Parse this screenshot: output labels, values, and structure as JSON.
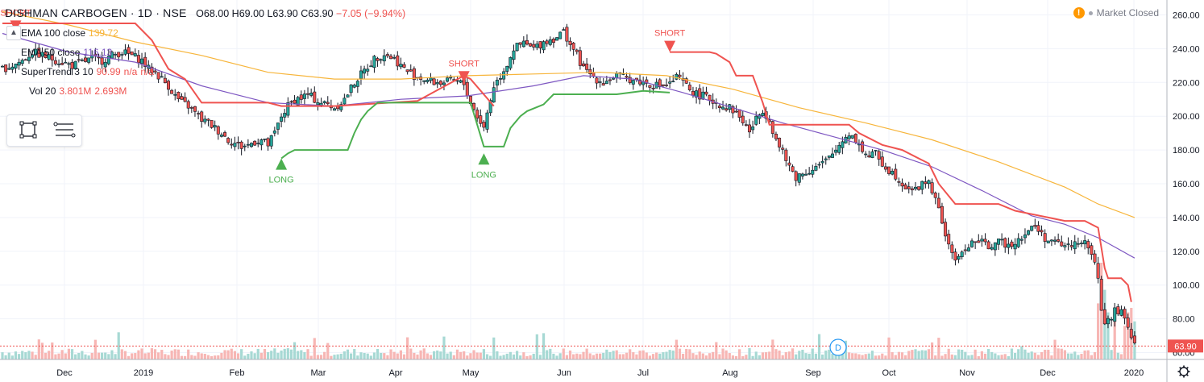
{
  "header": {
    "symbol": "DISHMAN CARBOGEN · 1D · NSE",
    "open": "O68.00",
    "high": "H69.00",
    "low": "L63.90",
    "close": "C63.90",
    "change": "−7.05 (−9.94%)"
  },
  "status": {
    "icon": "warning-icon",
    "text": "Market Closed"
  },
  "legend": [
    {
      "name": "EMA 100 close",
      "value": "139.72",
      "color": "#f7b53b"
    },
    {
      "name": "EMA 50 close",
      "value": "116.13",
      "color": "#7e57c2"
    },
    {
      "name": "SuperTrend 3 10",
      "value": "90.99",
      "extra1": "n/a",
      "extra2": "n/a",
      "color": "#ef5350"
    },
    {
      "name": "Vol 20",
      "value": "3.801M",
      "extra1": "2.693M",
      "color": "#ef5350"
    }
  ],
  "price_label": "63.90",
  "dividend_marker": "D",
  "signals": [
    {
      "label": "SHORT",
      "type": "short"
    },
    {
      "label": "LONG",
      "type": "long"
    },
    {
      "label": "SHORT",
      "type": "short"
    },
    {
      "label": "LONG",
      "type": "long"
    },
    {
      "label": "SHORT",
      "type": "short"
    }
  ],
  "colors": {
    "up": "#26a69a",
    "down": "#ef5350",
    "ema100": "#f7b53b",
    "ema50": "#7e57c2",
    "st_short": "#ef5350",
    "st_long": "#4caf50",
    "grid": "#f0f3fa"
  },
  "chart_data": {
    "type": "candlestick",
    "x_ticks": [
      "Dec",
      "2019",
      "Feb",
      "Mar",
      "Apr",
      "May",
      "Jun",
      "Jul",
      "Aug",
      "Sep",
      "Oct",
      "Nov",
      "Dec",
      "2020"
    ],
    "y_ticks": [
      "260.00",
      "240.00",
      "220.00",
      "200.00",
      "180.00",
      "160.00",
      "140.00",
      "120.00",
      "100.00",
      "80.00",
      "60.00"
    ],
    "ylim": [
      55,
      265
    ],
    "close_series": [
      [
        0,
        228
      ],
      [
        3,
        230
      ],
      [
        6,
        233
      ],
      [
        9,
        238
      ],
      [
        12,
        236
      ],
      [
        15,
        234
      ],
      [
        18,
        232
      ],
      [
        21,
        230
      ],
      [
        24,
        232
      ],
      [
        27,
        234
      ],
      [
        30,
        233
      ],
      [
        33,
        236
      ],
      [
        36,
        238
      ],
      [
        39,
        236
      ],
      [
        42,
        233
      ],
      [
        44,
        228
      ],
      [
        46,
        226
      ],
      [
        48,
        222
      ],
      [
        50,
        218
      ],
      [
        52,
        212
      ],
      [
        54,
        208
      ],
      [
        56,
        206
      ],
      [
        58,
        202
      ],
      [
        60,
        198
      ],
      [
        62,
        196
      ],
      [
        64,
        193
      ],
      [
        66,
        190
      ],
      [
        68,
        186
      ],
      [
        70,
        184
      ],
      [
        72,
        182
      ],
      [
        74,
        183
      ],
      [
        76,
        185
      ],
      [
        78,
        186
      ],
      [
        80,
        183
      ],
      [
        82,
        190
      ],
      [
        84,
        200
      ],
      [
        86,
        206
      ],
      [
        88,
        210
      ],
      [
        90,
        211
      ],
      [
        92,
        213
      ],
      [
        94,
        210
      ],
      [
        96,
        208
      ],
      [
        98,
        207
      ],
      [
        100,
        205
      ],
      [
        103,
        210
      ],
      [
        106,
        220
      ],
      [
        109,
        227
      ],
      [
        112,
        234
      ],
      [
        115,
        237
      ],
      [
        118,
        234
      ],
      [
        121,
        228
      ],
      [
        124,
        224
      ],
      [
        127,
        222
      ],
      [
        130,
        220
      ],
      [
        133,
        220
      ],
      [
        136,
        221
      ],
      [
        139,
        219
      ],
      [
        141,
        208
      ],
      [
        143,
        200
      ],
      [
        145,
        193
      ],
      [
        146,
        202
      ],
      [
        148,
        218
      ],
      [
        150,
        224
      ],
      [
        152,
        231
      ],
      [
        154,
        240
      ],
      [
        157,
        243
      ],
      [
        160,
        240
      ],
      [
        163,
        244
      ],
      [
        166,
        246
      ],
      [
        169,
        250
      ],
      [
        171,
        243
      ],
      [
        173,
        236
      ],
      [
        175,
        228
      ],
      [
        177,
        225
      ],
      [
        179,
        222
      ],
      [
        181,
        220
      ],
      [
        183,
        222
      ],
      [
        185,
        224
      ],
      [
        187,
        223
      ],
      [
        189,
        222
      ],
      [
        191,
        221
      ],
      [
        193,
        220
      ],
      [
        195,
        219
      ],
      [
        198,
        218
      ],
      [
        201,
        219
      ],
      [
        203,
        223
      ],
      [
        205,
        220
      ],
      [
        207,
        216
      ],
      [
        209,
        213
      ],
      [
        211,
        212
      ],
      [
        213,
        210
      ],
      [
        215,
        208
      ],
      [
        217,
        206
      ],
      [
        219,
        205
      ],
      [
        221,
        202
      ],
      [
        223,
        197
      ],
      [
        225,
        191
      ],
      [
        227,
        198
      ],
      [
        229,
        204
      ],
      [
        231,
        198
      ],
      [
        233,
        186
      ],
      [
        235,
        178
      ],
      [
        237,
        170
      ],
      [
        239,
        164
      ],
      [
        241,
        166
      ],
      [
        243,
        168
      ],
      [
        245,
        170
      ],
      [
        247,
        172
      ],
      [
        249,
        175
      ],
      [
        251,
        180
      ],
      [
        253,
        186
      ],
      [
        255,
        190
      ],
      [
        257,
        186
      ],
      [
        259,
        180
      ],
      [
        261,
        176
      ],
      [
        263,
        178
      ],
      [
        265,
        172
      ],
      [
        267,
        168
      ],
      [
        269,
        165
      ],
      [
        271,
        160
      ],
      [
        273,
        158
      ],
      [
        275,
        156
      ],
      [
        277,
        160
      ],
      [
        279,
        162
      ],
      [
        281,
        150
      ],
      [
        283,
        138
      ],
      [
        285,
        122
      ],
      [
        287,
        116
      ],
      [
        289,
        118
      ],
      [
        291,
        124
      ],
      [
        293,
        126
      ],
      [
        295,
        125
      ],
      [
        297,
        123
      ],
      [
        299,
        125
      ],
      [
        301,
        125
      ],
      [
        303,
        124
      ],
      [
        305,
        126
      ],
      [
        307,
        129
      ],
      [
        309,
        132
      ],
      [
        311,
        135
      ],
      [
        313,
        130
      ],
      [
        315,
        126
      ],
      [
        317,
        125
      ],
      [
        319,
        124
      ],
      [
        321,
        123
      ],
      [
        323,
        125
      ],
      [
        325,
        127
      ],
      [
        327,
        121
      ],
      [
        329,
        115
      ],
      [
        330,
        102
      ],
      [
        331,
        86
      ],
      [
        332,
        75
      ],
      [
        333,
        80
      ],
      [
        334,
        82
      ],
      [
        335,
        85
      ],
      [
        336,
        84
      ],
      [
        337,
        86
      ],
      [
        338,
        80
      ],
      [
        339,
        74
      ],
      [
        340,
        71
      ],
      [
        341,
        64
      ]
    ],
    "ema50": [
      [
        0,
        249
      ],
      [
        20,
        238
      ],
      [
        40,
        232
      ],
      [
        60,
        218
      ],
      [
        80,
        208
      ],
      [
        100,
        206
      ],
      [
        120,
        210
      ],
      [
        140,
        212
      ],
      [
        160,
        218
      ],
      [
        175,
        224
      ],
      [
        190,
        222
      ],
      [
        205,
        214
      ],
      [
        220,
        205
      ],
      [
        235,
        196
      ],
      [
        250,
        188
      ],
      [
        265,
        180
      ],
      [
        280,
        170
      ],
      [
        295,
        156
      ],
      [
        310,
        141
      ],
      [
        320,
        136
      ],
      [
        330,
        128
      ],
      [
        341,
        116
      ]
    ],
    "ema100": [
      [
        0,
        262
      ],
      [
        20,
        254
      ],
      [
        40,
        244
      ],
      [
        60,
        236
      ],
      [
        80,
        226
      ],
      [
        100,
        222
      ],
      [
        120,
        222
      ],
      [
        140,
        224
      ],
      [
        160,
        225
      ],
      [
        180,
        226
      ],
      [
        200,
        224
      ],
      [
        220,
        216
      ],
      [
        240,
        205
      ],
      [
        260,
        196
      ],
      [
        280,
        186
      ],
      [
        300,
        173
      ],
      [
        320,
        158
      ],
      [
        330,
        148
      ],
      [
        341,
        140
      ]
    ],
    "supertrend_short": [
      [
        0,
        255
      ],
      [
        20,
        255
      ],
      [
        40,
        255
      ],
      [
        45,
        245
      ],
      [
        50,
        228
      ],
      [
        55,
        222
      ],
      [
        60,
        208
      ],
      [
        80,
        208
      ],
      [
        84,
        206
      ],
      [
        100,
        206
      ],
      [
        125,
        209
      ],
      [
        139,
        224
      ],
      [
        141,
        222
      ],
      [
        148,
        206
      ]
    ],
    "supertrend_long": [
      [
        84,
        175
      ],
      [
        86,
        178
      ],
      [
        88,
        180
      ],
      [
        92,
        180
      ],
      [
        104,
        180
      ],
      [
        106,
        190
      ],
      [
        108,
        198
      ],
      [
        110,
        203
      ],
      [
        113,
        208
      ],
      [
        141,
        208
      ],
      [
        145,
        182
      ],
      [
        151,
        182
      ],
      [
        153,
        193
      ],
      [
        156,
        200
      ],
      [
        158,
        203
      ],
      [
        163,
        207
      ],
      [
        166,
        213
      ],
      [
        185,
        213
      ],
      [
        189,
        214
      ],
      [
        193,
        215
      ],
      [
        201,
        214
      ]
    ],
    "supertrend_short2": [
      [
        201,
        238
      ],
      [
        203,
        238
      ],
      [
        213,
        238
      ],
      [
        215,
        237
      ],
      [
        219,
        232
      ],
      [
        221,
        224
      ],
      [
        226,
        224
      ],
      [
        229,
        208
      ],
      [
        231,
        195
      ],
      [
        244,
        195
      ],
      [
        255,
        195
      ],
      [
        258,
        190
      ],
      [
        265,
        183
      ],
      [
        271,
        180
      ],
      [
        279,
        172
      ],
      [
        282,
        160
      ],
      [
        287,
        148
      ],
      [
        300,
        148
      ],
      [
        305,
        144
      ],
      [
        315,
        140
      ],
      [
        320,
        138
      ],
      [
        326,
        138
      ],
      [
        330,
        134
      ],
      [
        332,
        110
      ],
      [
        333,
        104
      ],
      [
        337,
        104
      ],
      [
        339,
        100
      ],
      [
        340,
        90
      ]
    ],
    "volume_peaks": [
      [
        330,
        0.55
      ],
      [
        331,
        1.0
      ],
      [
        332,
        0.7
      ],
      [
        333,
        0.45
      ],
      [
        335,
        0.4
      ],
      [
        338,
        0.3
      ],
      [
        339,
        0.45
      ],
      [
        340,
        0.5
      ],
      [
        341,
        0.35
      ]
    ]
  }
}
